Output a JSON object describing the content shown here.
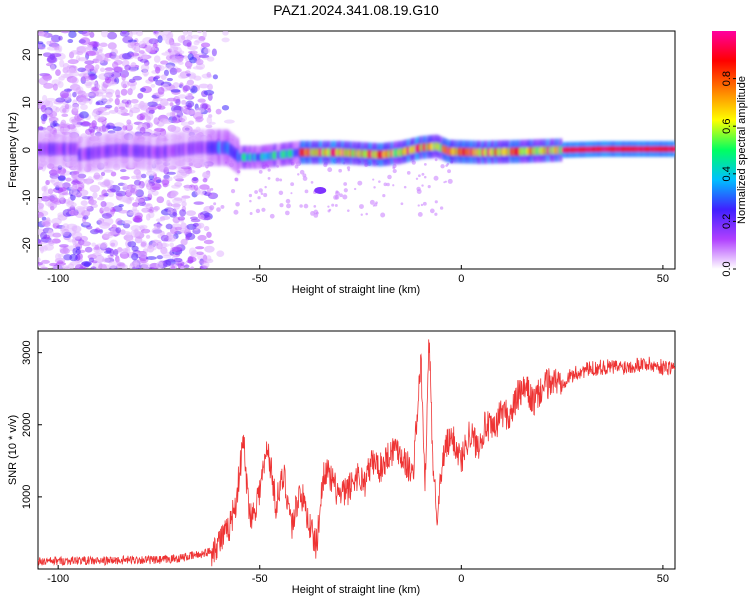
{
  "title": "PAZ1.2024.341.08.19.G10",
  "chart_data": [
    {
      "type": "heatmap",
      "xlabel": "Height of straight line (km)",
      "ylabel": "Frequency (Hz)",
      "xlim": [
        -105,
        53
      ],
      "ylim": [
        -25,
        25
      ],
      "xticks": [
        "-100",
        "-50",
        "0",
        "50"
      ],
      "yticks": [
        "20",
        "10",
        "0",
        "-10",
        "-20"
      ],
      "colorbar": {
        "label": "Normalized spectral amplitude",
        "range": [
          0.0,
          1.0
        ],
        "ticks": [
          "0.0",
          "0.2",
          "0.4",
          "0.6",
          "0.8"
        ],
        "colormap": [
          "#ffffff",
          "#b040ff",
          "#4020ff",
          "#00c0ff",
          "#00ff60",
          "#ffff00",
          "#ff8000",
          "#ff0000",
          "#ff00a0"
        ]
      },
      "ridge": [
        {
          "x": -95,
          "y": -1.0
        },
        {
          "x": -85,
          "y": 0.0
        },
        {
          "x": -75,
          "y": -0.5
        },
        {
          "x": -65,
          "y": 0.5
        },
        {
          "x": -58,
          "y": 0.5
        },
        {
          "x": -55,
          "y": -1.5
        },
        {
          "x": -50,
          "y": -1.5
        },
        {
          "x": -45,
          "y": -1.0
        },
        {
          "x": -40,
          "y": -0.5
        },
        {
          "x": -30,
          "y": -0.5
        },
        {
          "x": -20,
          "y": -1.0
        },
        {
          "x": -15,
          "y": -0.5
        },
        {
          "x": -10,
          "y": 0.5
        },
        {
          "x": -6,
          "y": 0.8
        },
        {
          "x": -3,
          "y": -0.3
        },
        {
          "x": 5,
          "y": -0.5
        },
        {
          "x": 15,
          "y": -0.3
        },
        {
          "x": 25,
          "y": 0.0
        },
        {
          "x": 35,
          "y": 0.2
        },
        {
          "x": 45,
          "y": 0.2
        },
        {
          "x": 53,
          "y": 0.2
        }
      ],
      "secondary_feature": {
        "x": -35,
        "y": -8.5
      }
    },
    {
      "type": "line",
      "xlabel": "Height of straight line (km)",
      "ylabel": "SNR (10 * v/v)",
      "xlim": [
        -105,
        53
      ],
      "ylim": [
        0,
        3300
      ],
      "xticks": [
        "-100",
        "-50",
        "0",
        "50"
      ],
      "yticks": [
        "1000",
        "2000",
        "3000"
      ],
      "color": "#ee3333",
      "series": [
        {
          "x": [
            -105,
            -100,
            -95,
            -90,
            -85,
            -80,
            -75,
            -70,
            -65,
            -62,
            -60,
            -58,
            -56,
            -54,
            -53,
            -52,
            -50,
            -48,
            -46,
            -44,
            -42,
            -40,
            -38,
            -36,
            -34,
            -32,
            -30,
            -28,
            -26,
            -24,
            -22,
            -20,
            -18,
            -16,
            -14,
            -12,
            -10,
            -9,
            -8,
            -7,
            -6,
            -4,
            -2,
            0,
            2,
            4,
            6,
            8,
            10,
            12,
            14,
            16,
            18,
            20,
            22,
            25,
            28,
            30,
            35,
            40,
            45,
            50,
            53
          ],
          "y": [
            100,
            110,
            120,
            110,
            120,
            130,
            120,
            150,
            200,
            250,
            400,
            500,
            900,
            1800,
            1000,
            700,
            1100,
            1700,
            900,
            1300,
            600,
            1100,
            700,
            300,
            1400,
            1200,
            1000,
            1100,
            1300,
            1200,
            1500,
            1400,
            1600,
            1700,
            1500,
            1300,
            2900,
            1100,
            3200,
            1400,
            800,
            1700,
            1800,
            1500,
            1900,
            1700,
            2000,
            1900,
            2200,
            2100,
            2400,
            2500,
            2300,
            2500,
            2600,
            2600,
            2700,
            2750,
            2800,
            2800,
            2850,
            2800,
            2800
          ]
        }
      ]
    }
  ]
}
